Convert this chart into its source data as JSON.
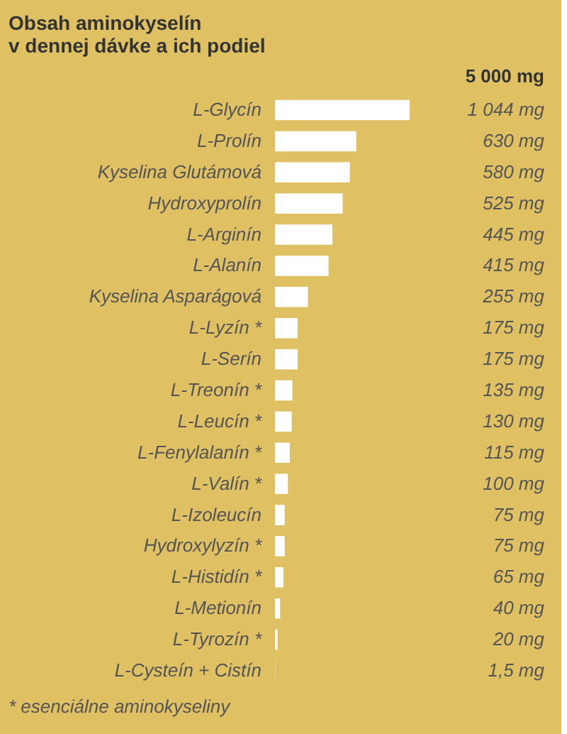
{
  "chart_data": {
    "type": "bar",
    "orientation": "horizontal",
    "title": "Obsah aminokyselín\nv dennej dávke a ich podiel",
    "categories": [
      "L-Glycín",
      "L-Prolín",
      "Kyselina Glutámová",
      "Hydroxyprolín",
      "L-Arginín",
      "L-Alanín",
      "Kyselina Asparágová",
      "L-Lyzín *",
      "L-Serín",
      "L-Treonín *",
      "L-Leucín *",
      "L-Fenylalanín *",
      "L-Valín *",
      "L-Izoleucín",
      "Hydroxylyzín *",
      "L-Histidín *",
      "L-Metionín",
      "L-Tyrozín *",
      "L-Cysteín + Cistín"
    ],
    "values": [
      1044,
      630,
      580,
      525,
      445,
      415,
      255,
      175,
      175,
      135,
      130,
      115,
      100,
      75,
      75,
      65,
      40,
      20,
      1.5
    ],
    "value_labels": [
      "1 044 mg",
      "630 mg",
      "580 mg",
      "525 mg",
      "445 mg",
      "415 mg",
      "255 mg",
      "175 mg",
      "175 mg",
      "135 mg",
      "130 mg",
      "115 mg",
      "100 mg",
      "75 mg",
      "75 mg",
      "65 mg",
      "40 mg",
      "20 mg",
      "1,5 mg"
    ],
    "color": "#ffffff",
    "annotations": [
      "5 000 mg",
      "* esenciálne aminokyseliny"
    ],
    "grid": false
  }
}
